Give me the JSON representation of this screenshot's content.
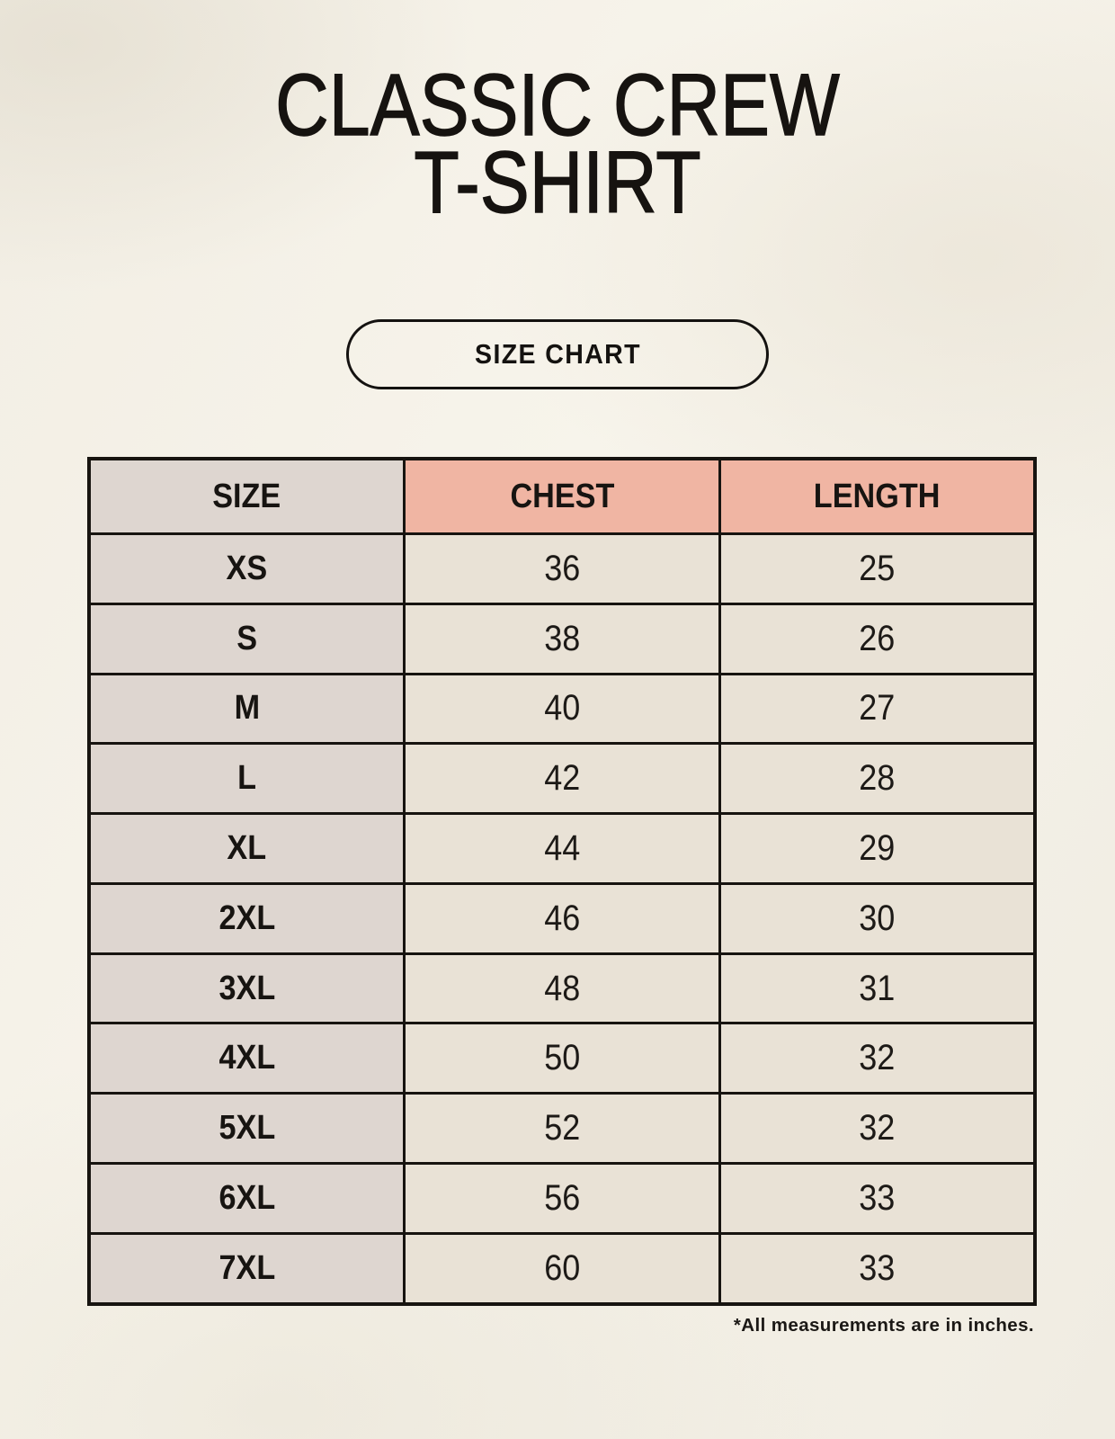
{
  "page": {
    "title": {
      "line1": "CLASSIC CREW",
      "line2": "T-SHIRT"
    },
    "size_chart_button": "SIZE CHART",
    "footnote": "*All measurements are in inches."
  },
  "chart_data": {
    "type": "table",
    "title": "CLASSIC CREW T-SHIRT",
    "columns": [
      "SIZE",
      "CHEST",
      "LENGTH"
    ],
    "units": "inches",
    "rows": [
      [
        "XS",
        "36",
        "25"
      ],
      [
        "S",
        "38",
        "26"
      ],
      [
        "M",
        "40",
        "27"
      ],
      [
        "L",
        "42",
        "28"
      ],
      [
        "XL",
        "44",
        "29"
      ],
      [
        "2XL",
        "46",
        "30"
      ],
      [
        "3XL",
        "48",
        "31"
      ],
      [
        "4XL",
        "50",
        "32"
      ],
      [
        "5XL",
        "52",
        "32"
      ],
      [
        "6XL",
        "56",
        "33"
      ],
      [
        "7XL",
        "60",
        "33"
      ]
    ]
  },
  "colors": {
    "background": "#f4f0e7",
    "header_accent": "#f0b5a3",
    "size_column": "#ded6d0",
    "data_cell": "#e9e2d6",
    "border": "#171410",
    "text": "#1a1815"
  }
}
